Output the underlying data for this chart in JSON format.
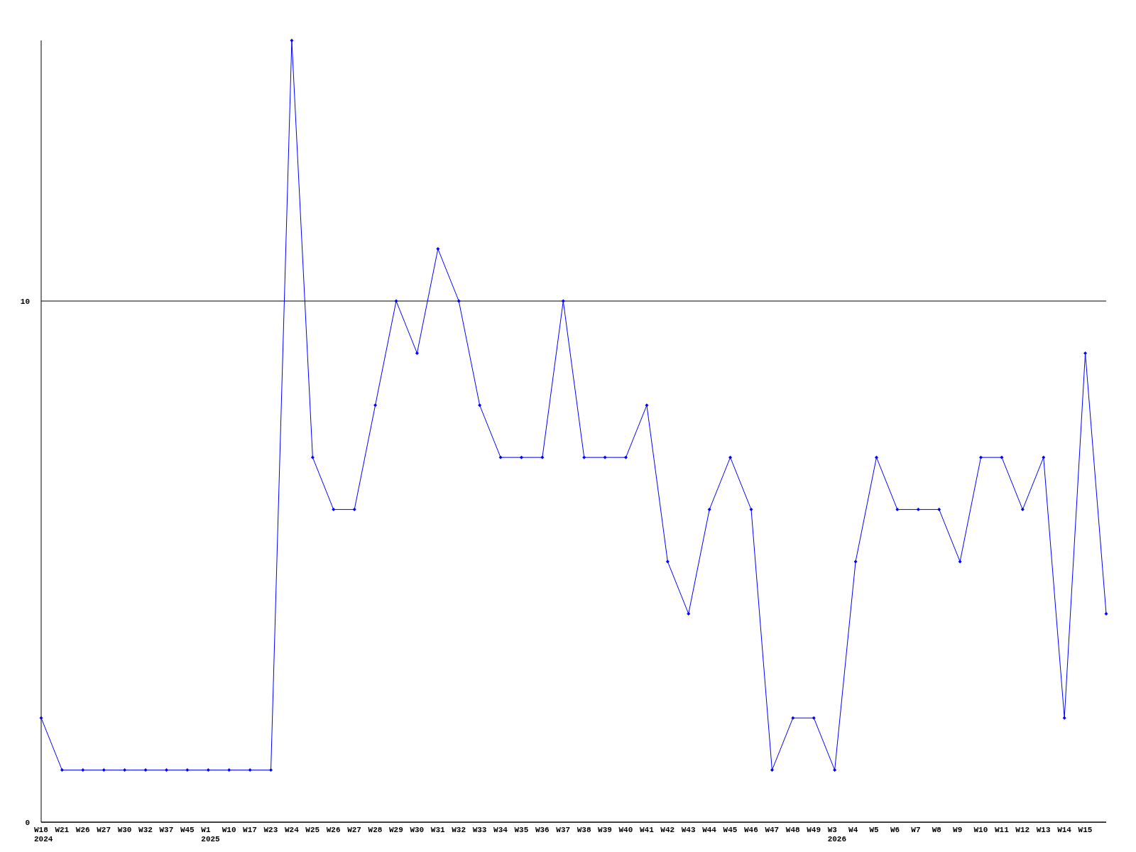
{
  "chart_data": {
    "type": "line",
    "categories": [
      "W18\n2024",
      "W21",
      "W26",
      "W27",
      "W30",
      "W32",
      "W37",
      "W45",
      "W1\n2025",
      "W10",
      "W17",
      "W23",
      "W24",
      "W25",
      "W26",
      "W27",
      "W28",
      "W29",
      "W30",
      "W31",
      "W32",
      "W33",
      "W34",
      "W35",
      "W36",
      "W37",
      "W38",
      "W39",
      "W40",
      "W41",
      "W42",
      "W43",
      "W44",
      "W45",
      "W46",
      "W47",
      "W48",
      "W49",
      "W3\n2026",
      "W4",
      "W5",
      "W6",
      "W7",
      "W8",
      "W9",
      "W10",
      "W11",
      "W12",
      "W13",
      "W14",
      "W15",
      null
    ],
    "series": [
      {
        "color": "#0000ff",
        "values": [
          2,
          1,
          1,
          1,
          1,
          1,
          1,
          1,
          1,
          1,
          1,
          1,
          15,
          7,
          6,
          6,
          8,
          10,
          9,
          11,
          10,
          8,
          7,
          7,
          7,
          10,
          7,
          7,
          7,
          8,
          5,
          4,
          6,
          7,
          6,
          1,
          2,
          2,
          1,
          5,
          7,
          6,
          6,
          6,
          5,
          7,
          7,
          6,
          7,
          2,
          9,
          4
        ]
      }
    ],
    "ylim": [
      0,
      15
    ],
    "yticks": [
      0,
      10
    ],
    "grid": "y",
    "marker": "diamond",
    "line_style": "solid"
  }
}
